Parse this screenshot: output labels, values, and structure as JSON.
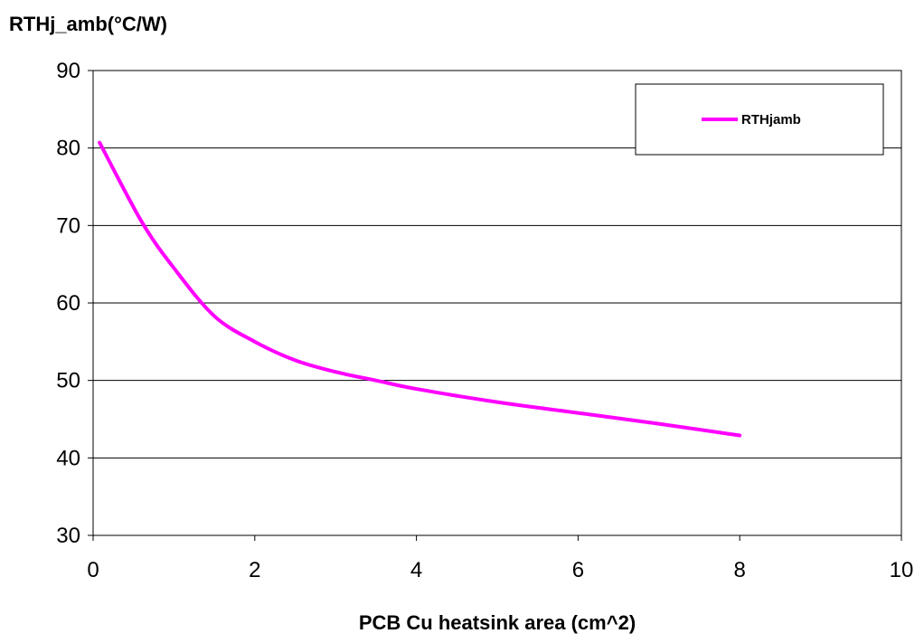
{
  "chart_data": {
    "type": "line",
    "title": "",
    "xlabel": "PCB Cu heatsink area (cm^2)",
    "ylabel": "RTHj_amb(°C/W)",
    "xlim": [
      0,
      10
    ],
    "ylim": [
      30,
      90
    ],
    "xticks": [
      "0",
      "2",
      "4",
      "6",
      "8",
      "10"
    ],
    "yticks": [
      "30",
      "40",
      "50",
      "60",
      "70",
      "80",
      "90"
    ],
    "grid": "horizontal",
    "legend_position": "top-right",
    "series": [
      {
        "name": "RTHjamb",
        "color": "#ff00ff",
        "x": [
          0.08,
          0.6,
          1.0,
          1.5,
          2.0,
          2.5,
          3.0,
          3.5,
          4.0,
          5.0,
          6.0,
          7.0,
          8.0
        ],
        "y": [
          80.7,
          70.5,
          64.5,
          58.3,
          55.0,
          52.6,
          51.1,
          50.0,
          48.9,
          47.2,
          45.8,
          44.4,
          42.9
        ]
      }
    ]
  }
}
